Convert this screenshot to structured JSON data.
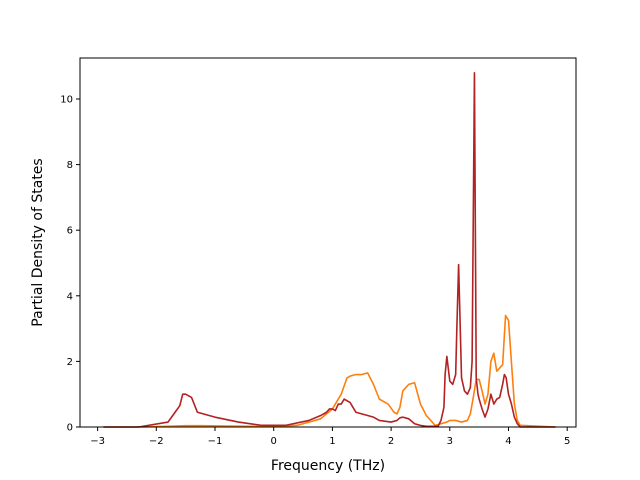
{
  "chart_data": {
    "type": "line",
    "title": "",
    "xlabel": "Frequency (THz)",
    "ylabel": "Partial Density of States",
    "xlim": [
      -3.3,
      5.15
    ],
    "ylim": [
      0,
      11.25
    ],
    "xticks": [
      -3,
      -2,
      -1,
      0,
      1,
      2,
      3,
      4,
      5
    ],
    "xtick_labels": [
      "−3",
      "−2",
      "−1",
      "0",
      "1",
      "2",
      "3",
      "4",
      "5"
    ],
    "yticks": [
      0,
      2,
      4,
      6,
      8,
      10
    ],
    "ytick_labels": [
      "0",
      "2",
      "4",
      "6",
      "8",
      "10"
    ],
    "grid": false,
    "legend": "none",
    "series": [
      {
        "color": "#ff7f0e",
        "x": [
          -2.9,
          -2.3,
          -1.8,
          -1.5,
          -1.2,
          -0.8,
          -0.4,
          0.0,
          0.4,
          0.8,
          1.0,
          1.15,
          1.25,
          1.3,
          1.4,
          1.5,
          1.6,
          1.7,
          1.8,
          1.95,
          2.05,
          2.1,
          2.15,
          2.2,
          2.3,
          2.4,
          2.5,
          2.6,
          2.7,
          2.75,
          2.85,
          2.95,
          3.0,
          3.1,
          3.2,
          3.3,
          3.35,
          3.4,
          3.45,
          3.5,
          3.55,
          3.6,
          3.65,
          3.7,
          3.75,
          3.8,
          3.9,
          3.95,
          4.0,
          4.1,
          4.15,
          4.2,
          4.8
        ],
        "y": [
          0,
          0,
          0.02,
          0.04,
          0.04,
          0.03,
          0.02,
          0.02,
          0.05,
          0.25,
          0.55,
          1.0,
          1.5,
          1.55,
          1.6,
          1.6,
          1.65,
          1.3,
          0.85,
          0.7,
          0.45,
          0.4,
          0.6,
          1.1,
          1.3,
          1.35,
          0.7,
          0.35,
          0.15,
          0.05,
          0.1,
          0.15,
          0.2,
          0.2,
          0.15,
          0.2,
          0.4,
          0.9,
          1.45,
          1.45,
          1.1,
          0.7,
          1.0,
          2.0,
          2.25,
          1.7,
          1.9,
          3.4,
          3.25,
          0.7,
          0.2,
          0.05,
          0
        ]
      },
      {
        "color": "#b22222",
        "x": [
          -2.9,
          -2.3,
          -1.8,
          -1.7,
          -1.6,
          -1.55,
          -1.5,
          -1.4,
          -1.3,
          -1.2,
          -1.0,
          -0.6,
          -0.2,
          0.2,
          0.6,
          0.8,
          0.9,
          0.95,
          1.0,
          1.05,
          1.1,
          1.15,
          1.2,
          1.3,
          1.35,
          1.4,
          1.5,
          1.6,
          1.7,
          1.8,
          2.0,
          2.1,
          2.15,
          2.2,
          2.3,
          2.4,
          2.5,
          2.6,
          2.8,
          2.85,
          2.9,
          2.92,
          2.95,
          3.0,
          3.05,
          3.1,
          3.12,
          3.15,
          3.2,
          3.25,
          3.3,
          3.35,
          3.38,
          3.42,
          3.45,
          3.48,
          3.5,
          3.55,
          3.6,
          3.65,
          3.7,
          3.75,
          3.8,
          3.85,
          3.9,
          3.93,
          3.96,
          4.0,
          4.05,
          4.1,
          4.15,
          4.2,
          4.8
        ],
        "y": [
          0,
          0,
          0.15,
          0.4,
          0.65,
          1.0,
          1.0,
          0.9,
          0.45,
          0.4,
          0.3,
          0.15,
          0.05,
          0.05,
          0.2,
          0.35,
          0.45,
          0.55,
          0.55,
          0.5,
          0.7,
          0.7,
          0.85,
          0.75,
          0.6,
          0.45,
          0.4,
          0.35,
          0.3,
          0.2,
          0.15,
          0.2,
          0.28,
          0.3,
          0.25,
          0.1,
          0.05,
          0.02,
          0.02,
          0.2,
          0.6,
          1.6,
          2.15,
          1.4,
          1.3,
          1.6,
          3.0,
          4.95,
          1.5,
          1.1,
          1.0,
          1.2,
          2.0,
          10.8,
          1.5,
          1.0,
          0.85,
          0.55,
          0.3,
          0.55,
          1.0,
          0.7,
          0.85,
          0.9,
          1.3,
          1.6,
          1.5,
          1.0,
          0.7,
          0.3,
          0.1,
          0.0,
          0
        ]
      }
    ]
  }
}
